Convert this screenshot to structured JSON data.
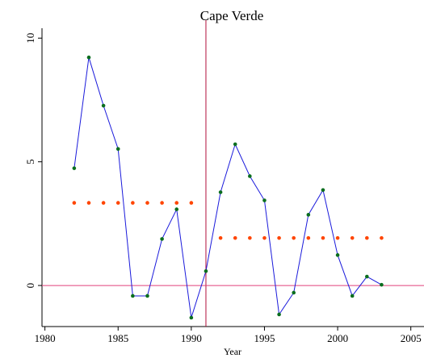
{
  "chart_data": {
    "type": "line",
    "title": "Cape Verde",
    "x_label": "Year",
    "x": [
      1982,
      1983,
      1984,
      1985,
      1986,
      1987,
      1988,
      1989,
      1990,
      1991,
      1992,
      1993,
      1994,
      1995,
      1996,
      1997,
      1998,
      1999,
      2000,
      2001,
      2002,
      2003
    ],
    "series": [
      {
        "color": "#1a1adb",
        "marker_color": "#0a6e1e",
        "line": true,
        "values": [
          4.74,
          9.22,
          7.27,
          5.52,
          -0.42,
          -0.42,
          1.88,
          3.08,
          -1.3,
          0.58,
          3.77,
          5.71,
          4.42,
          3.44,
          -1.17,
          -0.29,
          2.86,
          3.86,
          1.23,
          -0.42,
          0.36,
          0.03
        ]
      },
      {
        "marker_color": "#ff4500",
        "line": false,
        "values": [
          3.34,
          3.34,
          3.34,
          3.34,
          3.34,
          3.34,
          3.34,
          3.34,
          3.34,
          null,
          null,
          null,
          null,
          null,
          null,
          null,
          null,
          null,
          null,
          null,
          null,
          null
        ]
      },
      {
        "marker_color": "#ff4500",
        "line": false,
        "values": [
          null,
          null,
          null,
          null,
          null,
          null,
          null,
          null,
          null,
          null,
          1.92,
          1.92,
          1.92,
          1.92,
          1.92,
          1.92,
          1.92,
          1.92,
          1.92,
          1.92,
          1.92,
          1.92
        ]
      }
    ],
    "xlim": [
      1979.8,
      2005.9
    ],
    "xticks": [
      1980,
      1985,
      1990,
      1995,
      2000,
      2005
    ],
    "ylim": [
      -1.66,
      10.4
    ],
    "yticks": [
      0,
      5,
      10
    ],
    "vline": 1991,
    "hline": 0,
    "refline_color": "#b0103a",
    "hline_color": "#e0407a"
  }
}
